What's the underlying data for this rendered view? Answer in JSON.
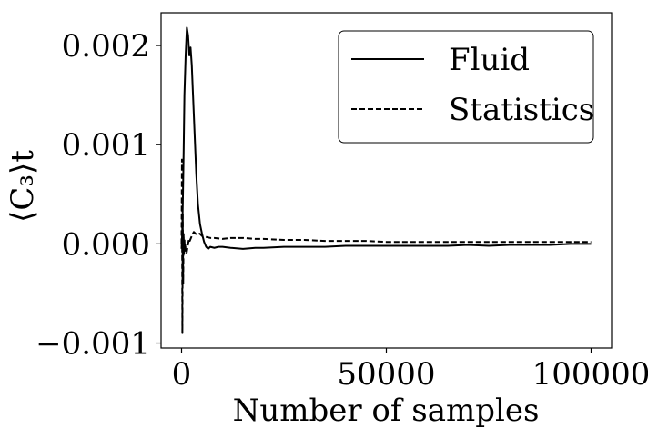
{
  "chart_data": {
    "type": "line",
    "xlabel": "Number of samples",
    "ylabel": "⟨C₃⟩t",
    "xlim": [
      -5000,
      105000
    ],
    "ylim": [
      -0.00105,
      0.00233
    ],
    "xticks": [
      0,
      50000,
      100000
    ],
    "xtick_labels": [
      "0",
      "50000",
      "100000"
    ],
    "yticks": [
      -0.001,
      0.0,
      0.001,
      0.002
    ],
    "ytick_labels": [
      "−0.001",
      "0.000",
      "0.001",
      "0.002"
    ],
    "grid": false,
    "legend_position": "top-right",
    "series": [
      {
        "name": "Fluid",
        "style": "solid",
        "color": "#000000",
        "x": [
          0,
          150,
          300,
          500,
          700,
          1000,
          1300,
          1600,
          1900,
          2200,
          2500,
          2800,
          3200,
          3600,
          4000,
          4500,
          5000,
          5500,
          6000,
          6500,
          7000,
          8000,
          9000,
          10000,
          12000,
          15000,
          18000,
          20000,
          25000,
          30000,
          35000,
          40000,
          45000,
          50000,
          55000,
          60000,
          65000,
          70000,
          75000,
          80000,
          85000,
          90000,
          95000,
          100000
        ],
        "y": [
          -5e-05,
          0.0001,
          0.0004,
          0.0009,
          0.0015,
          0.0019,
          0.00218,
          0.0021,
          0.0019,
          0.00198,
          0.0018,
          0.0015,
          0.0011,
          0.0007,
          0.0004,
          0.0002,
          0.0001,
          2e-05,
          -3e-05,
          -5e-05,
          -3e-05,
          -4e-05,
          -3e-05,
          -3e-05,
          -4e-05,
          -5e-05,
          -4e-05,
          -4e-05,
          -3e-05,
          -3e-05,
          -3e-05,
          -2e-05,
          -2e-05,
          -2e-05,
          -2e-05,
          -2e-05,
          -2e-05,
          -1e-05,
          -2e-05,
          -1e-05,
          -1e-05,
          -1e-05,
          0.0,
          0.0
        ]
      },
      {
        "name": "Statistics",
        "style": "dashed",
        "color": "#000000",
        "x": [
          0,
          100,
          200,
          300,
          400,
          500,
          600,
          700,
          800,
          900,
          1000,
          1200,
          1400,
          1600,
          1800,
          2000,
          2500,
          3000,
          3500,
          4000,
          4500,
          5000,
          6000,
          7000,
          8000,
          10000,
          12000,
          15000,
          18000,
          20000,
          25000,
          30000,
          35000,
          40000,
          45000,
          50000,
          55000,
          60000,
          65000,
          70000,
          75000,
          80000,
          85000,
          90000,
          95000,
          100000
        ],
        "y": [
          0.0,
          0.00085,
          -0.0009,
          0.0003,
          -0.0004,
          0.0001,
          -0.0001,
          5e-05,
          -5e-05,
          0.0,
          -8e-05,
          -0.0001,
          -5e-05,
          0.0,
          5e-05,
          3e-05,
          8e-05,
          0.00012,
          0.0001,
          0.00011,
          0.0001,
          8e-05,
          7e-05,
          6e-05,
          6e-05,
          5e-05,
          6e-05,
          6e-05,
          5e-05,
          5e-05,
          4e-05,
          4e-05,
          3e-05,
          3e-05,
          3e-05,
          2e-05,
          2e-05,
          2e-05,
          2e-05,
          2e-05,
          2e-05,
          2e-05,
          2e-05,
          2e-05,
          2e-05,
          2e-05
        ]
      }
    ]
  }
}
